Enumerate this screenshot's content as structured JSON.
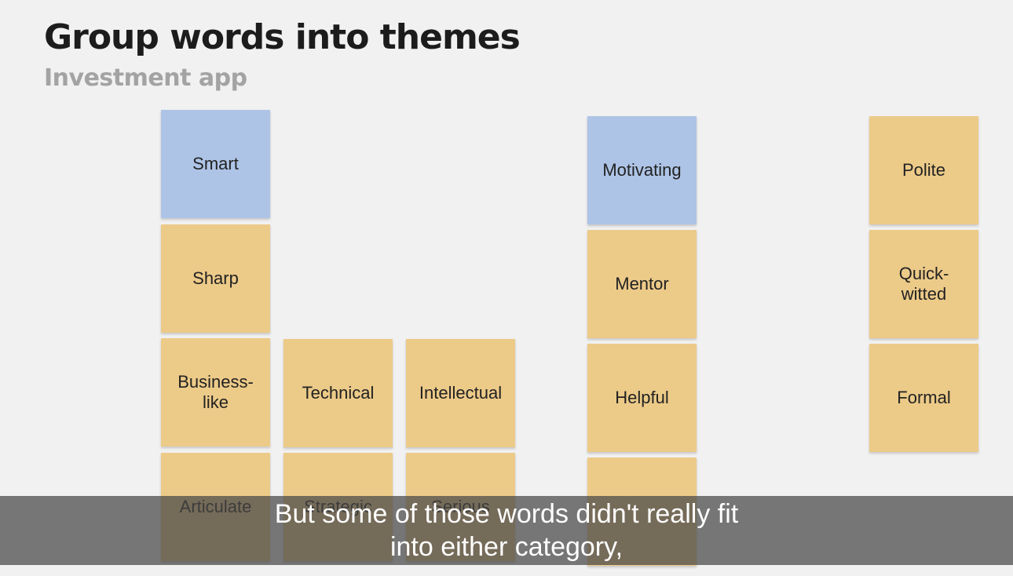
{
  "header": {
    "title": "Group words into themes",
    "subtitle": "Investment app"
  },
  "notes": [
    {
      "lines": [
        "Smart"
      ],
      "color": "#aec4e6"
    },
    {
      "lines": [
        "Sharp"
      ],
      "color": "#ecca88"
    },
    {
      "lines": [
        "Business-",
        "like"
      ],
      "color": "#ecca88"
    },
    {
      "lines": [
        "Articulate"
      ],
      "color": "#ecca88"
    },
    {
      "lines": [
        "Technical"
      ],
      "color": "#ecca88"
    },
    {
      "lines": [
        "Strategic"
      ],
      "color": "#ecca88"
    },
    {
      "lines": [
        "Intellectual"
      ],
      "color": "#ecca88"
    },
    {
      "lines": [
        "Serious"
      ],
      "color": "#ecca88"
    },
    {
      "lines": [
        "Motivating"
      ],
      "color": "#aec4e6"
    },
    {
      "lines": [
        "Mentor"
      ],
      "color": "#ecca88"
    },
    {
      "lines": [
        "Helpful"
      ],
      "color": "#ecca88"
    },
    {
      "lines": [],
      "color": "#ecca88"
    },
    {
      "lines": [
        "Polite"
      ],
      "color": "#ecca88"
    },
    {
      "lines": [
        "Quick-",
        "witted"
      ],
      "color": "#ecca88"
    },
    {
      "lines": [
        "Formal"
      ],
      "color": "#ecca88"
    }
  ],
  "caption": {
    "lines": [
      "But some of those words didn't really fit",
      "into either category,"
    ]
  }
}
